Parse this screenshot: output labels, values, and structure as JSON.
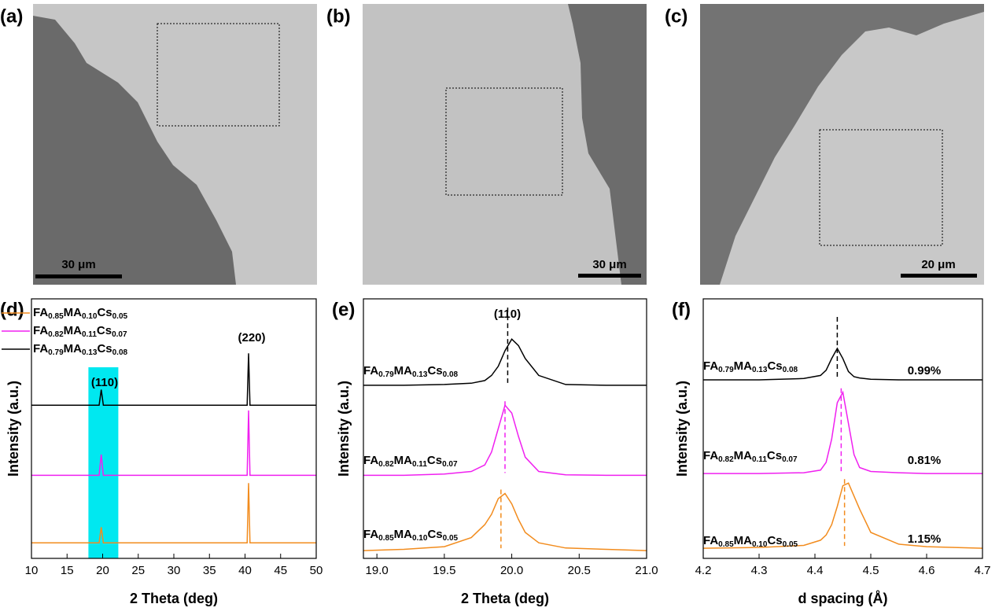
{
  "panels": [
    {
      "label": "(a)",
      "scale_bar": "30 μm"
    },
    {
      "label": "(b)",
      "scale_bar": "30 μm"
    },
    {
      "label": "(c)",
      "scale_bar": "20 μm"
    }
  ],
  "chart_data": [
    {
      "type": "line",
      "panel_label": "(d)",
      "xlabel": "2 Theta (deg)",
      "ylabel": "Intensity (a.u.)",
      "xlim": [
        10,
        50
      ],
      "xticks": [
        10,
        15,
        20,
        25,
        30,
        35,
        40,
        45,
        50
      ],
      "ylim": [
        0,
        100
      ],
      "legend": "upper left",
      "highlight": {
        "range": [
          18,
          22.2
        ],
        "color": "#00e8f0"
      },
      "annotations": [
        "(110)",
        "(220)"
      ],
      "x": [
        10,
        19.5,
        19.8,
        20.1,
        20.5,
        40,
        40.3,
        40.5,
        40.7,
        41,
        50
      ],
      "series": [
        {
          "name": "FA0.85MA0.10Cs0.05",
          "color": "#f28c1e",
          "values": [
            6,
            6,
            12,
            6,
            6,
            6,
            6,
            29,
            6,
            6,
            6
          ]
        },
        {
          "name": "FA0.82MA0.11Cs0.07",
          "color": "#f020f0",
          "values": [
            32,
            32,
            40,
            32,
            32,
            32,
            32,
            57,
            32,
            32,
            32
          ]
        },
        {
          "name": "FA0.79MA0.13Cs0.08",
          "color": "#000000",
          "values": [
            59,
            59,
            65,
            59,
            59,
            59,
            59,
            79,
            59,
            59,
            59
          ]
        }
      ]
    },
    {
      "type": "line",
      "panel_label": "(e)",
      "xlabel": "2 Theta (deg)",
      "ylabel": "Intensity (a.u.)",
      "xlim": [
        18.9,
        21.0
      ],
      "xticks": [
        {
          "value": 19,
          "label": "19.0"
        },
        19.5,
        {
          "value": 20,
          "label": "20.0"
        },
        20.5,
        {
          "value": 21,
          "label": "21.0"
        }
      ],
      "ylim": [
        0,
        100
      ],
      "legend": "inline",
      "annotations": [
        "(110)"
      ],
      "x": [
        18.9,
        19.2,
        19.5,
        19.7,
        19.8,
        19.85,
        19.9,
        19.95,
        20.0,
        20.05,
        20.1,
        20.2,
        20.4,
        20.7,
        21.0
      ],
      "series": [
        {
          "name": "FA0.85MA0.10Cs0.05",
          "color": "#f28c1e",
          "peak": 19.92,
          "values": [
            3,
            3.5,
            4.5,
            8,
            13,
            17,
            23,
            25,
            21,
            15,
            10,
            6,
            4,
            3.5,
            3
          ]
        },
        {
          "name": "FA0.82MA0.11Cs0.07",
          "color": "#f020f0",
          "peak": 19.95,
          "values": [
            32,
            32,
            32.5,
            33.5,
            36,
            41,
            50,
            59,
            56,
            47,
            39,
            33.5,
            32.2,
            32,
            32
          ]
        },
        {
          "name": "FA0.79MA0.13Cs0.08",
          "color": "#000000",
          "peak": 19.97,
          "values": [
            66.7,
            66.7,
            67,
            67.5,
            68.5,
            70.5,
            74,
            80,
            84.5,
            82,
            77,
            70.5,
            67,
            66.7,
            66.7
          ]
        }
      ]
    },
    {
      "type": "line",
      "panel_label": "(f)",
      "xlabel": "d spacing (Å)",
      "ylabel": "Intensity (a.u.)",
      "xlim": [
        4.2,
        4.7
      ],
      "xticks": [
        4.2,
        4.3,
        4.4,
        4.5,
        4.6,
        4.7
      ],
      "ylim": [
        0,
        100
      ],
      "legend": "inline",
      "annotations": [
        "1.15%",
        "0.81%",
        "0.99%"
      ],
      "x": [
        4.2,
        4.3,
        4.38,
        4.41,
        4.42,
        4.43,
        4.44,
        4.45,
        4.46,
        4.47,
        4.48,
        4.5,
        4.55,
        4.6,
        4.7
      ],
      "series": [
        {
          "name": "FA0.85MA0.10Cs0.05",
          "color": "#f28c1e",
          "peak": 4.453,
          "values": [
            3.9,
            4.2,
            5,
            7,
            9,
            13,
            20,
            28,
            29,
            24,
            19,
            10,
            5.5,
            4.5,
            3.9
          ]
        },
        {
          "name": "FA0.82MA0.11Cs0.07",
          "color": "#f020f0",
          "peak": 4.447,
          "values": [
            32.7,
            32.7,
            33,
            34,
            37,
            46,
            60,
            64,
            52,
            40,
            35,
            33.5,
            33,
            32.7,
            32.7
          ]
        },
        {
          "name": "FA0.79MA0.13Cs0.08",
          "color": "#000000",
          "peak": 4.44,
          "values": [
            68.8,
            68.8,
            69.3,
            70.5,
            72.5,
            77,
            80.9,
            77,
            72,
            70,
            69.5,
            69,
            68.8,
            68.8,
            68.8
          ]
        }
      ]
    }
  ]
}
